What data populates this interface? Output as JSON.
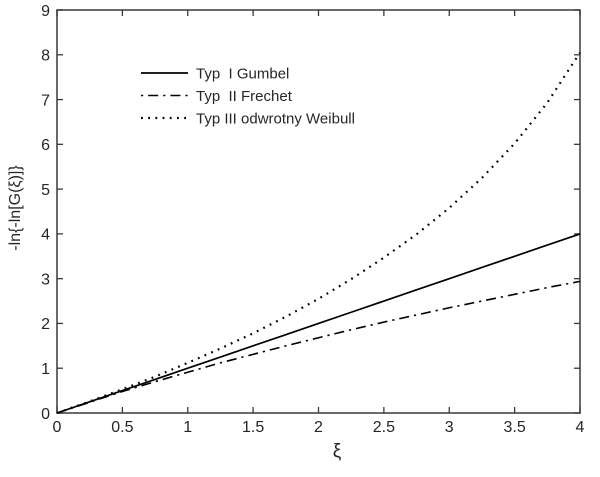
{
  "figure": {
    "background": "#ffffff",
    "frame_color": "#454545",
    "tick_color": "#3a3a3a",
    "text_color": "#262626",
    "curve_color": "#000000"
  },
  "chart_data": {
    "type": "line",
    "title": "",
    "xlabel": "ξ",
    "ylabel": "-ln{-ln[G(ξ)]}",
    "xlim": [
      0,
      4
    ],
    "ylim": [
      0,
      9
    ],
    "grid": false,
    "box": true,
    "legend_position": "upper-left-inside",
    "x_ticks": [
      0,
      0.5,
      1,
      1.5,
      2,
      2.5,
      3,
      3.5,
      4
    ],
    "x_tick_labels": [
      "0",
      "0.5",
      "1",
      "1.5",
      "2",
      "2.5",
      "3",
      "3.5",
      "4"
    ],
    "y_ticks": [
      0,
      1,
      2,
      3,
      4,
      5,
      6,
      7,
      8,
      9
    ],
    "y_tick_labels": [
      "0",
      "1",
      "2",
      "3",
      "4",
      "5",
      "6",
      "7",
      "8",
      "9"
    ],
    "x": [
      0,
      0.25,
      0.5,
      0.75,
      1,
      1.25,
      1.5,
      1.75,
      2,
      2.25,
      2.5,
      2.75,
      3,
      3.25,
      3.5,
      3.75,
      4
    ],
    "series": [
      {
        "name": "Typ  I Gumbel",
        "style": "solid",
        "values": [
          0,
          0.25,
          0.5,
          0.75,
          1,
          1.25,
          1.5,
          1.75,
          2,
          2.25,
          2.5,
          2.75,
          3,
          3.25,
          3.5,
          3.75,
          4
        ]
      },
      {
        "name": "Typ  II Frechet",
        "style": "dash-dot",
        "values": [
          0,
          0.24,
          0.48,
          0.7,
          0.91,
          1.12,
          1.31,
          1.5,
          1.68,
          1.86,
          2.03,
          2.19,
          2.35,
          2.5,
          2.65,
          2.8,
          2.94
        ]
      },
      {
        "name": "Typ III odwrotny Weibull",
        "style": "dotted",
        "values": [
          0,
          0.26,
          0.53,
          0.81,
          1.12,
          1.44,
          1.78,
          2.15,
          2.55,
          2.99,
          3.47,
          3.99,
          4.58,
          5.25,
          6.02,
          6.93,
          8.05
        ]
      }
    ]
  }
}
